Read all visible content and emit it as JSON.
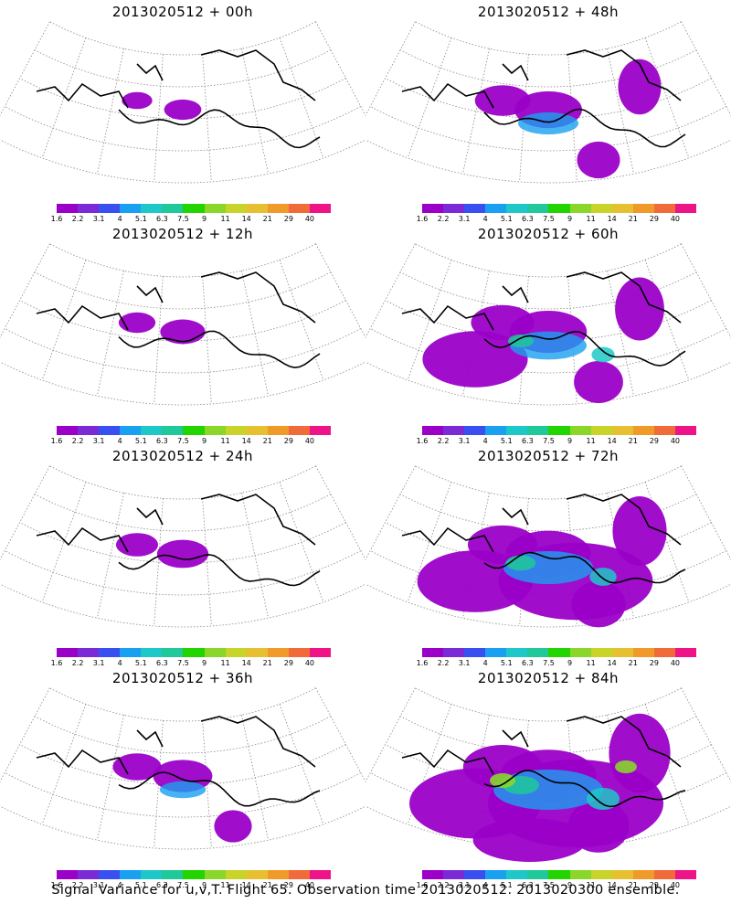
{
  "panels": [
    {
      "title": "2013020512 + 00h",
      "level": 0.08
    },
    {
      "title": "2013020512 + 48h",
      "level": 0.55
    },
    {
      "title": "2013020512 + 12h",
      "level": 0.2
    },
    {
      "title": "2013020512 + 60h",
      "level": 0.7
    },
    {
      "title": "2013020512 + 24h",
      "level": 0.3
    },
    {
      "title": "2013020512 + 72h",
      "level": 0.82
    },
    {
      "title": "2013020512 + 36h",
      "level": 0.42
    },
    {
      "title": "2013020512 + 84h",
      "level": 1.0
    }
  ],
  "colorbar": {
    "labels": [
      "1.6",
      "2.2",
      "3.1",
      "4",
      "5.1",
      "6.3",
      "7.5",
      "9",
      "11",
      "14",
      "21",
      "29",
      "40"
    ],
    "colors": [
      "#9b00c8",
      "#7b2bd6",
      "#3a4ff0",
      "#1aa0f0",
      "#1ec8c8",
      "#20c89a",
      "#22d400",
      "#8ad62a",
      "#c8d42a",
      "#e6c030",
      "#f09a2a",
      "#f06a3a",
      "#ee1488"
    ]
  },
  "footer": "Signal Variance for u,v,T. Flight 65. Observation time 2013020512. 2013020300 ensemble."
}
